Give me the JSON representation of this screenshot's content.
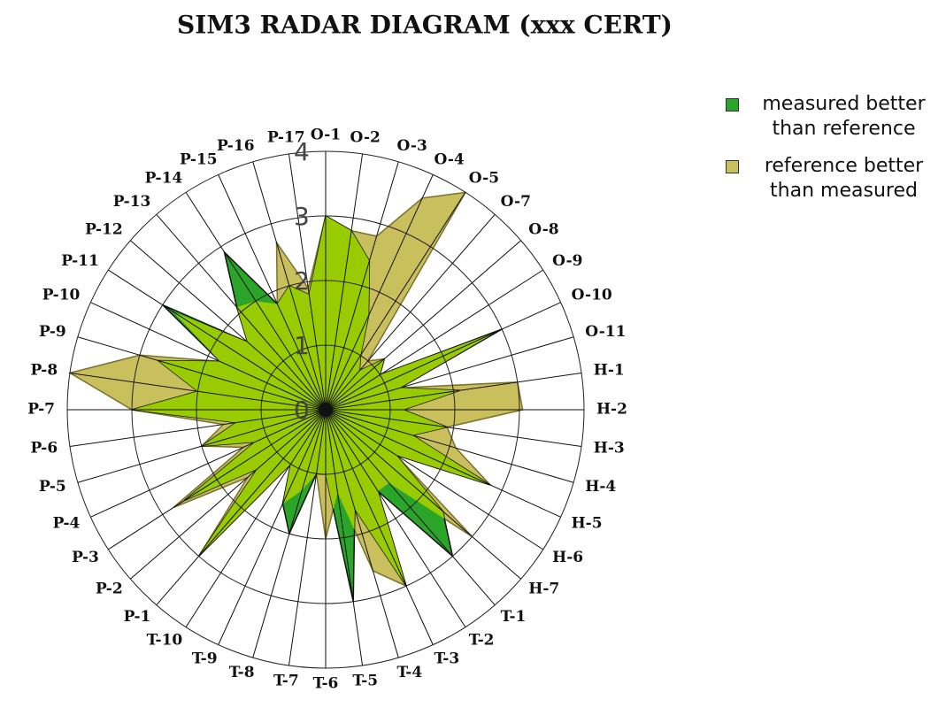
{
  "chart_data": {
    "type": "radar",
    "title": "SIM3 RADAR DIAGRAM (xxx CERT)",
    "categories": [
      "O-1",
      "O-2",
      "O-3",
      "O-4",
      "O-5",
      "O-7",
      "O-8",
      "O-9",
      "O-10",
      "O-11",
      "H-1",
      "H-2",
      "H-3",
      "H-4",
      "H-5",
      "H-6",
      "H-7",
      "T-1",
      "T-2",
      "T-3",
      "T-4",
      "T-5",
      "T-6",
      "T-7",
      "T-8",
      "T-9",
      "T-10",
      "P-1",
      "P-2",
      "P-3",
      "P-4",
      "P-5",
      "P-6",
      "P-7",
      "P-8",
      "P-9",
      "P-10",
      "P-11",
      "P-12",
      "P-13",
      "P-14",
      "P-15",
      "P-16",
      "P-17"
    ],
    "series": [
      {
        "name": "measured better than reference",
        "color": "#2aa52a",
        "values": [
          3,
          2.8,
          2.4,
          1.6,
          1,
          0.8,
          1.2,
          1,
          3,
          1.2,
          2.1,
          1.2,
          1.9,
          1.4,
          2.8,
          1.3,
          2.4,
          3,
          1.5,
          3,
          1.6,
          3,
          1,
          1,
          2,
          1.6,
          1,
          3,
          1.4,
          2.6,
          1.2,
          2,
          1.4,
          3,
          2,
          2.7,
          1.8,
          3,
          1.6,
          2.1,
          2.9,
          1.8,
          2,
          1.8
        ]
      },
      {
        "name": "reference better than measured",
        "color": "#c9bf5c",
        "values": [
          3,
          2.8,
          2.8,
          3.6,
          4,
          1,
          1.2,
          1,
          2.9,
          1.2,
          3,
          3.05,
          1.9,
          2.1,
          2.8,
          1.3,
          3,
          1.5,
          1.5,
          3,
          2.6,
          1.3,
          2,
          1,
          1.3,
          1.6,
          1,
          3,
          1.6,
          2.8,
          1.4,
          2,
          1.6,
          3,
          4,
          3,
          1.8,
          2.8,
          1.6,
          2.1,
          2,
          1.8,
          2.7,
          1.9
        ]
      }
    ],
    "overlap_color": "#99cc00",
    "rlim": [
      0,
      4
    ],
    "rticks": [
      0,
      1,
      2,
      3,
      4
    ],
    "grid": true
  }
}
